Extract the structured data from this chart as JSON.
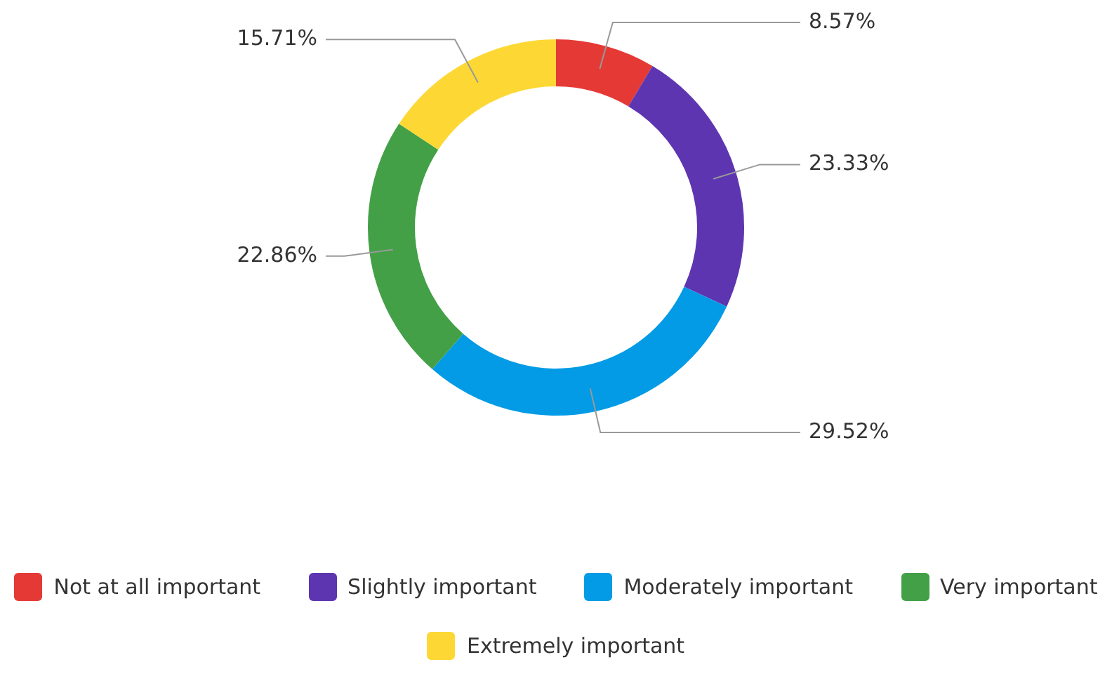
{
  "chart_data": {
    "type": "donut",
    "categories": [
      "Not at all important",
      "Slightly important",
      "Moderately important",
      "Very important",
      "Extremely important"
    ],
    "values": [
      8.57,
      23.33,
      29.52,
      22.86,
      15.71
    ],
    "value_labels": [
      "8.57%",
      "23.33%",
      "29.52%",
      "22.86%",
      "15.71%"
    ],
    "colors": [
      "#e53935",
      "#5e35b1",
      "#039be5",
      "#43a047",
      "#fdd835"
    ],
    "legend": "bottom"
  }
}
